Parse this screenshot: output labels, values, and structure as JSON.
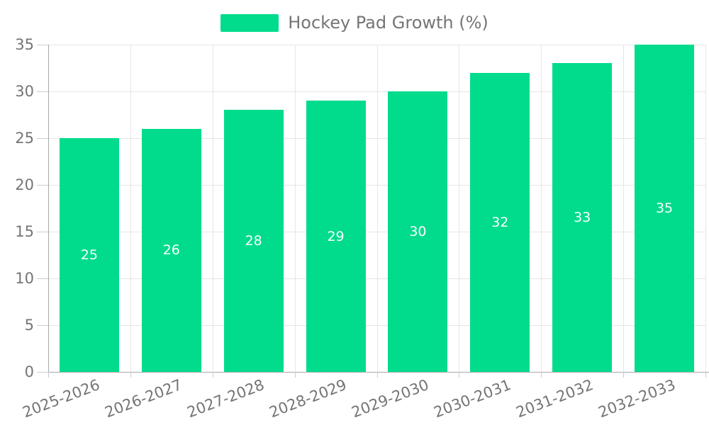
{
  "chart_data": {
    "type": "bar",
    "title": "Hockey Pad Growth (%)",
    "categories": [
      "2025-2026",
      "2026-2027",
      "2027-2028",
      "2028-2029",
      "2029-2030",
      "2030-2031",
      "2031-2032",
      "2032-2033"
    ],
    "values": [
      25,
      26,
      28,
      29,
      30,
      32,
      33,
      35
    ],
    "xlabel": "",
    "ylabel": "",
    "ylim": [
      0,
      35
    ],
    "yticks": [
      0,
      5,
      10,
      15,
      20,
      25,
      30,
      35
    ],
    "grid": true,
    "legend_position": "top-center",
    "x_label_rotation_deg": -21,
    "bar_color": "#00DC8C",
    "bar_value_label_color": "#ffffff",
    "axis_text_color": "#757575",
    "gridline_color": "#e6e6e6",
    "axis_line_color": "#a8a8a8",
    "tick_mark_color": "#cccccc",
    "background_color": "#ffffff"
  }
}
